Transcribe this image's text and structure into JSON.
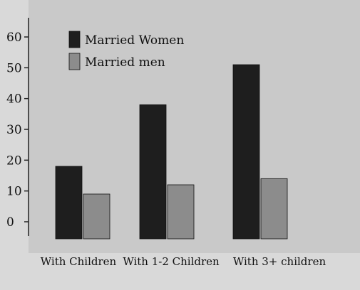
{
  "chart_data": {
    "type": "bar",
    "categories": [
      "With Children",
      "With 1-2 Children",
      "With 3+ children"
    ],
    "series": [
      {
        "name": "Married Women",
        "values": [
          18,
          38,
          51
        ],
        "color": "#1e1e1e"
      },
      {
        "name": "Married men",
        "values": [
          9,
          12,
          14
        ],
        "color": "#8c8c8c"
      }
    ],
    "y_ticks": [
      0,
      10,
      20,
      30,
      40,
      50,
      60
    ],
    "ylim": [
      0,
      60
    ],
    "legend_placement": "top-left",
    "grid": false
  }
}
